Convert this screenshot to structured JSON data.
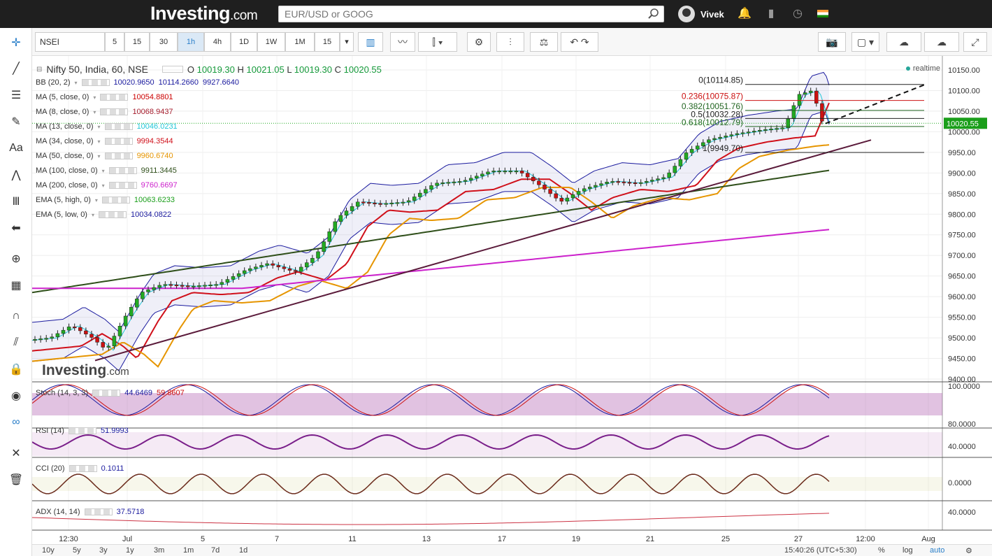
{
  "header": {
    "logo_main": "Investing",
    "logo_suffix": ".com",
    "search_placeholder": "EUR/USD or GOOG",
    "user_name": "Vivek"
  },
  "toolbar": {
    "symbol": "NSEI",
    "intervals": [
      "5",
      "15",
      "30",
      "1h",
      "4h",
      "1D",
      "1W",
      "1M",
      "15"
    ],
    "active_interval": "1h"
  },
  "chart": {
    "title": "Nifty 50, India, 60, NSE",
    "ohlc": {
      "o_label": "O",
      "o": "10019.30",
      "h_label": "H",
      "h": "10021.05",
      "l_label": "L",
      "l": "10019.30",
      "c_label": "C",
      "c": "10020.55"
    },
    "realtime": "realtime",
    "watermark": "Investing",
    "watermark_suffix": ".com",
    "indicators": [
      {
        "name": "BB (20, 2)",
        "values": [
          "10020.9650",
          "10114.2660",
          "9927.6640"
        ],
        "color": "#1a1a9e"
      },
      {
        "name": "MA (5, close, 0)",
        "values": [
          "10054.8801"
        ],
        "color": "#cc0000"
      },
      {
        "name": "MA (8, close, 0)",
        "values": [
          "10068.9437"
        ],
        "color": "#a51d2d"
      },
      {
        "name": "MA (13, close, 0)",
        "values": [
          "10046.0231"
        ],
        "color": "#22c7d8"
      },
      {
        "name": "MA (34, close, 0)",
        "values": [
          "9994.3544"
        ],
        "color": "#d0101a"
      },
      {
        "name": "MA (50, close, 0)",
        "values": [
          "9960.6740"
        ],
        "color": "#e69500"
      },
      {
        "name": "MA (100, close, 0)",
        "values": [
          "9911.3445"
        ],
        "color": "#2f4f1a"
      },
      {
        "name": "MA (200, close, 0)",
        "values": [
          "9760.6697"
        ],
        "color": "#cc22cc"
      },
      {
        "name": "EMA (5, high, 0)",
        "values": [
          "10063.6233"
        ],
        "color": "#1a9e1a"
      },
      {
        "name": "EMA (5, low, 0)",
        "values": [
          "10034.0822"
        ],
        "color": "#1a1a9e"
      }
    ],
    "fib_labels": [
      "0(10114.85)",
      "0.236(10075.87)",
      "0.382(10051.76)",
      "0.5(10032.28)",
      "0.618(10012.79)",
      "1(9949.70)"
    ],
    "price_axis": [
      "10150.00",
      "10100.00",
      "10050.00",
      "10000.00",
      "9950.00",
      "9900.00",
      "9850.00",
      "9800.00",
      "9750.00",
      "9700.00",
      "9650.00",
      "9600.00",
      "9550.00",
      "9500.00",
      "9450.00",
      "9400.00"
    ],
    "last_price": "10020.55",
    "time_axis": [
      "12:30",
      "Jul",
      "5",
      "7",
      "11",
      "13",
      "17",
      "19",
      "21",
      "25",
      "27",
      "12:00",
      "Aug"
    ]
  },
  "panes": [
    {
      "name": "Stoch (14, 3, 3)",
      "values": [
        "44.6469",
        "59.8607"
      ],
      "axis": [
        "100.0000"
      ]
    },
    {
      "name": "RSI (14)",
      "values": [
        "51.9993"
      ],
      "axis": [
        "80.0000",
        "40.0000"
      ]
    },
    {
      "name": "CCI (20)",
      "values": [
        "0.1011"
      ],
      "axis": [
        "0.0000"
      ]
    },
    {
      "name": "ADX (14, 14)",
      "values": [
        "37.5718"
      ],
      "axis": [
        "40.0000"
      ]
    }
  ],
  "bottom": {
    "ranges": [
      "10y",
      "5y",
      "3y",
      "1y",
      "3m",
      "1m",
      "7d",
      "1d"
    ],
    "time": "15:40:26 (UTC+5:30)",
    "options": [
      "%",
      "log",
      "auto"
    ]
  },
  "colors": {
    "up": "#22aa22",
    "down": "#cc1111",
    "accent": "#2a7fc9"
  }
}
